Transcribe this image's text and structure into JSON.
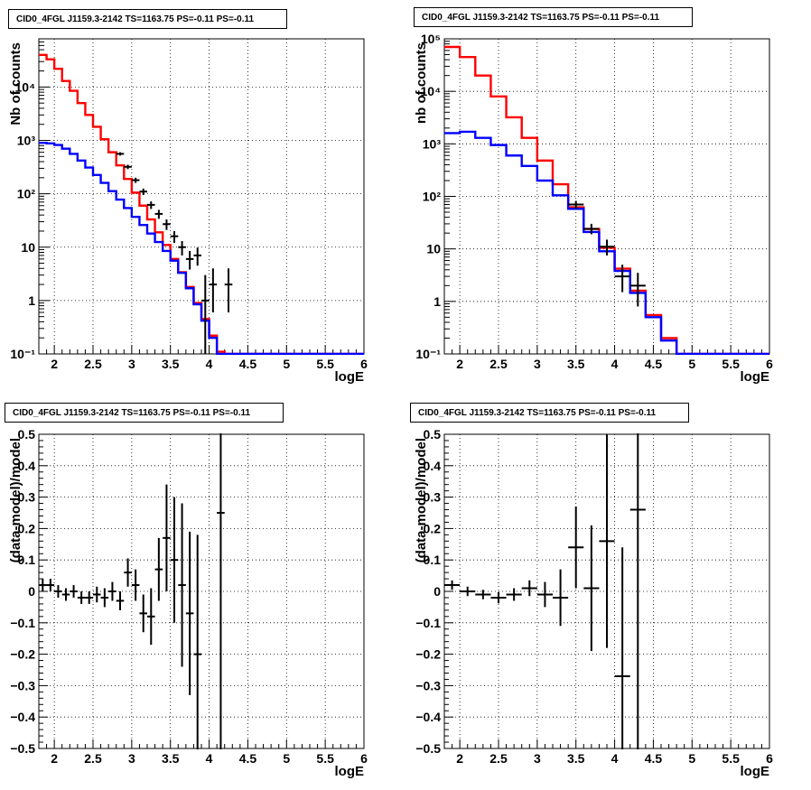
{
  "colors": {
    "data": "#000000",
    "model": "#ff0000",
    "background": "#0000ff",
    "grid": "#888888"
  },
  "chart_data": [
    {
      "type": "line",
      "title": "CID0_4FGL J1159.3-2142 TS=1163.75 PS=-0.11 PS=-0.11",
      "xlabel": "logE",
      "ylabel": "Nb of counts",
      "xlim": [
        1.8,
        6
      ],
      "ylim": [
        0.1,
        80000
      ],
      "yscale": "log",
      "grid": true,
      "xticks": [
        "2",
        "2.5",
        "3",
        "3.5",
        "4",
        "4.5",
        "5",
        "5.5",
        "6"
      ],
      "yticks": [
        "10⁻¹",
        "1",
        "10",
        "10²",
        "10³",
        "10⁴"
      ],
      "bin_edges": [
        1.8,
        1.9,
        2.0,
        2.1,
        2.2,
        2.3,
        2.4,
        2.5,
        2.6,
        2.7,
        2.8,
        2.9,
        3.0,
        3.1,
        3.2,
        3.3,
        3.4,
        3.5,
        3.6,
        3.7,
        3.8,
        3.9,
        4.0,
        4.1,
        4.2,
        4.3,
        4.4,
        4.5,
        4.6,
        4.7,
        4.8,
        4.9,
        5.0,
        5.1,
        5.2,
        5.3,
        5.4,
        5.5,
        5.6,
        5.7,
        5.8,
        5.9,
        6.0
      ],
      "series": [
        {
          "name": "model",
          "color": "#ff0000",
          "values": [
            40000,
            33000,
            22000,
            13000,
            8500,
            5000,
            3000,
            1800,
            1050,
            600,
            340,
            190,
            105,
            60,
            33,
            19,
            11,
            6,
            3.4,
            1.8,
            0.9,
            0.45,
            0.22,
            0.11,
            0.1,
            0.1,
            0.1,
            0.1,
            0.1,
            0.1,
            0.1,
            0.1,
            0.1,
            0.1,
            0.1,
            0.1,
            0.1,
            0.1,
            0.1,
            0.1,
            0.1,
            0.1
          ]
        },
        {
          "name": "background",
          "color": "#0000ff",
          "values": [
            900,
            880,
            820,
            700,
            560,
            420,
            310,
            225,
            160,
            112,
            78,
            54,
            37,
            26,
            18,
            12.5,
            8.5,
            5.6,
            3.3,
            1.7,
            0.85,
            0.42,
            0.2,
            0.1,
            0.1,
            0.1,
            0.1,
            0.1,
            0.1,
            0.1,
            0.1,
            0.1,
            0.1,
            0.1,
            0.1,
            0.1,
            0.1,
            0.1,
            0.1,
            0.1,
            0.1,
            0.1
          ]
        },
        {
          "name": "data",
          "color": "#000000",
          "points": [
            {
              "x": 2.85,
              "y": 560,
              "ylo": 520,
              "yhi": 600
            },
            {
              "x": 2.95,
              "y": 320,
              "ylo": 290,
              "yhi": 350
            },
            {
              "x": 3.05,
              "y": 180,
              "ylo": 160,
              "yhi": 200
            },
            {
              "x": 3.15,
              "y": 110,
              "ylo": 95,
              "yhi": 125
            },
            {
              "x": 3.25,
              "y": 62,
              "ylo": 52,
              "yhi": 72
            },
            {
              "x": 3.35,
              "y": 42,
              "ylo": 34,
              "yhi": 50
            },
            {
              "x": 3.45,
              "y": 27,
              "ylo": 21,
              "yhi": 33
            },
            {
              "x": 3.55,
              "y": 16,
              "ylo": 12,
              "yhi": 20
            },
            {
              "x": 3.65,
              "y": 10,
              "ylo": 7,
              "yhi": 13
            },
            {
              "x": 3.75,
              "y": 6,
              "ylo": 3.8,
              "yhi": 8.5
            },
            {
              "x": 3.85,
              "y": 7,
              "ylo": 4.5,
              "yhi": 9.8
            },
            {
              "x": 3.95,
              "y": 1,
              "ylo": 0.1,
              "yhi": 3
            },
            {
              "x": 4.05,
              "y": 2,
              "ylo": 0.6,
              "yhi": 4
            },
            {
              "x": 4.25,
              "y": 2,
              "ylo": 0.6,
              "yhi": 4
            }
          ]
        }
      ]
    },
    {
      "type": "line",
      "title": "CID0_4FGL J1159.3-2142 TS=1163.75 PS=-0.11 PS=-0.11",
      "xlabel": "logE",
      "ylabel": "nb of counts",
      "xlim": [
        1.8,
        6
      ],
      "ylim": [
        0.1,
        100000
      ],
      "yscale": "log",
      "grid": true,
      "xticks": [
        "2",
        "2.5",
        "3",
        "3.5",
        "4",
        "4.5",
        "5",
        "5.5",
        "6"
      ],
      "yticks": [
        "10⁻¹",
        "1",
        "10",
        "10²",
        "10³",
        "10⁴",
        "10⁵"
      ],
      "bin_edges": [
        1.8,
        2.0,
        2.2,
        2.4,
        2.6,
        2.8,
        3.0,
        3.2,
        3.4,
        3.6,
        3.8,
        4.0,
        4.2,
        4.4,
        4.6,
        4.8,
        5.0,
        5.2,
        5.4,
        5.6,
        5.8,
        6.0
      ],
      "series": [
        {
          "name": "model",
          "color": "#ff0000",
          "values": [
            70000,
            45000,
            20000,
            8000,
            3200,
            1300,
            480,
            170,
            62,
            24,
            10.5,
            4.2,
            1.6,
            0.55,
            0.2,
            0.1,
            0.1,
            0.1,
            0.1,
            0.1,
            0.1
          ]
        },
        {
          "name": "background",
          "color": "#0000ff",
          "values": [
            1600,
            1700,
            1300,
            950,
            600,
            380,
            200,
            105,
            58,
            21,
            9,
            3.8,
            1.45,
            0.5,
            0.18,
            0.1,
            0.1,
            0.1,
            0.1,
            0.1,
            0.1
          ]
        },
        {
          "name": "data",
          "color": "#000000",
          "points": [
            {
              "x": 3.5,
              "y": 70,
              "ylo": 58,
              "yhi": 82
            },
            {
              "x": 3.7,
              "y": 24,
              "ylo": 19,
              "yhi": 30
            },
            {
              "x": 3.9,
              "y": 11,
              "ylo": 7.5,
              "yhi": 15
            },
            {
              "x": 4.1,
              "y": 3,
              "ylo": 1.5,
              "yhi": 5
            },
            {
              "x": 4.3,
              "y": 2,
              "ylo": 0.8,
              "yhi": 3.5
            }
          ]
        }
      ]
    },
    {
      "type": "scatter",
      "title": "CID0_4FGL J1159.3-2142 TS=1163.75 PS=-0.11 PS=-0.11",
      "xlabel": "logE",
      "ylabel": "(data-model)/model",
      "xlim": [
        1.8,
        6
      ],
      "ylim": [
        -0.5,
        0.5
      ],
      "grid": true,
      "xticks": [
        "2",
        "2.5",
        "3",
        "3.5",
        "4",
        "4.5",
        "5",
        "5.5",
        "6"
      ],
      "yticks": [
        "−0.5",
        "−0.4",
        "−0.3",
        "−0.2",
        "−0.1",
        "0",
        "0.1",
        "0.2",
        "0.3",
        "0.4",
        "0.5"
      ],
      "points": [
        {
          "x": 1.85,
          "y": 0.02,
          "err": 0.02
        },
        {
          "x": 1.95,
          "y": 0.02,
          "err": 0.02
        },
        {
          "x": 2.05,
          "y": 0.0,
          "err": 0.02
        },
        {
          "x": 2.15,
          "y": -0.01,
          "err": 0.02
        },
        {
          "x": 2.25,
          "y": 0.0,
          "err": 0.02
        },
        {
          "x": 2.35,
          "y": -0.02,
          "err": 0.02
        },
        {
          "x": 2.45,
          "y": -0.02,
          "err": 0.02
        },
        {
          "x": 2.55,
          "y": -0.01,
          "err": 0.025
        },
        {
          "x": 2.65,
          "y": -0.02,
          "err": 0.03
        },
        {
          "x": 2.75,
          "y": 0.0,
          "err": 0.03
        },
        {
          "x": 2.85,
          "y": -0.03,
          "err": 0.03
        },
        {
          "x": 2.95,
          "y": 0.06,
          "err": 0.045
        },
        {
          "x": 3.05,
          "y": 0.02,
          "err": 0.05
        },
        {
          "x": 3.15,
          "y": -0.07,
          "err": 0.06
        },
        {
          "x": 3.25,
          "y": -0.08,
          "err": 0.09
        },
        {
          "x": 3.35,
          "y": 0.07,
          "err": 0.1
        },
        {
          "x": 3.45,
          "y": 0.17,
          "err": 0.17
        },
        {
          "x": 3.55,
          "y": 0.1,
          "err": 0.2
        },
        {
          "x": 3.65,
          "y": 0.02,
          "err": 0.26
        },
        {
          "x": 3.75,
          "y": -0.07,
          "err": 0.26
        },
        {
          "x": 3.85,
          "y": -0.2,
          "err": 0.38
        },
        {
          "x": 4.15,
          "y": 0.25,
          "err": 0.95
        }
      ]
    },
    {
      "type": "scatter",
      "title": "CID0_4FGL J1159.3-2142 TS=1163.75 PS=-0.11 PS=-0.11",
      "xlabel": "logE",
      "ylabel": "(data-model)/model",
      "xlim": [
        1.8,
        6
      ],
      "ylim": [
        -0.5,
        0.5
      ],
      "grid": true,
      "xticks": [
        "2",
        "2.5",
        "3",
        "3.5",
        "4",
        "4.5",
        "5",
        "5.5",
        "6"
      ],
      "yticks": [
        "−0.5",
        "−0.4",
        "−0.3",
        "−0.2",
        "−0.1",
        "0",
        "0.1",
        "0.2",
        "0.3",
        "0.4",
        "0.5"
      ],
      "points": [
        {
          "x": 1.9,
          "y": 0.02,
          "err": 0.015
        },
        {
          "x": 2.1,
          "y": 0.0,
          "err": 0.015
        },
        {
          "x": 2.3,
          "y": -0.01,
          "err": 0.015
        },
        {
          "x": 2.5,
          "y": -0.02,
          "err": 0.018
        },
        {
          "x": 2.7,
          "y": -0.01,
          "err": 0.02
        },
        {
          "x": 2.9,
          "y": 0.01,
          "err": 0.025
        },
        {
          "x": 3.1,
          "y": -0.01,
          "err": 0.04
        },
        {
          "x": 3.3,
          "y": -0.02,
          "err": 0.09
        },
        {
          "x": 3.5,
          "y": 0.14,
          "err": 0.13
        },
        {
          "x": 3.7,
          "y": 0.01,
          "err": 0.2
        },
        {
          "x": 3.9,
          "y": 0.16,
          "err": 0.34
        },
        {
          "x": 4.1,
          "y": -0.27,
          "err": 0.41
        },
        {
          "x": 4.3,
          "y": 0.26,
          "err": 0.85
        }
      ]
    }
  ]
}
